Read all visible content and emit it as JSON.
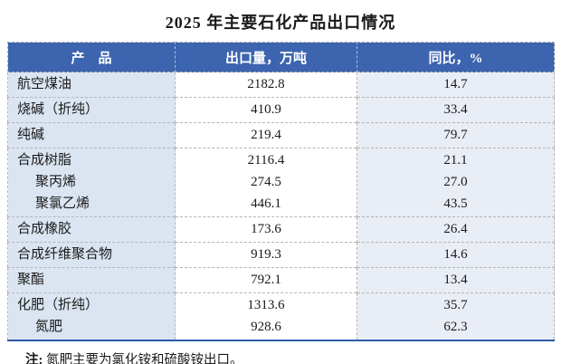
{
  "title": "2025 年主要石化产品出口情况",
  "colors": {
    "header_bg": "#3C64AF",
    "col1_bg": "#DBE5F1",
    "col3_bg": "#E9EDF5",
    "accent_border": "#2E5AA8",
    "grid": "#B5B5B5"
  },
  "table": {
    "headers": [
      "产　品",
      "出口量，万吨",
      "同比，%"
    ],
    "rows": [
      {
        "lines": [
          {
            "name": "航空煤油",
            "indent": false,
            "export": "2182.8",
            "yoy": "14.7"
          }
        ]
      },
      {
        "lines": [
          {
            "name": "烧碱（折纯）",
            "indent": false,
            "export": "410.9",
            "yoy": "33.4"
          }
        ]
      },
      {
        "lines": [
          {
            "name": "纯碱",
            "indent": false,
            "export": "219.4",
            "yoy": "79.7"
          }
        ]
      },
      {
        "lines": [
          {
            "name": "合成树脂",
            "indent": false,
            "export": "2116.4",
            "yoy": "21.1"
          },
          {
            "name": "聚丙烯",
            "indent": true,
            "export": "274.5",
            "yoy": "27.0"
          },
          {
            "name": "聚氯乙烯",
            "indent": true,
            "export": "446.1",
            "yoy": "43.5"
          }
        ]
      },
      {
        "lines": [
          {
            "name": "合成橡胶",
            "indent": false,
            "export": "173.6",
            "yoy": "26.4"
          }
        ]
      },
      {
        "lines": [
          {
            "name": "合成纤维聚合物",
            "indent": false,
            "export": "919.3",
            "yoy": "14.6"
          }
        ]
      },
      {
        "lines": [
          {
            "name": "聚酯",
            "indent": false,
            "export": "792.1",
            "yoy": "13.4"
          }
        ]
      },
      {
        "lines": [
          {
            "name": "化肥（折纯）",
            "indent": false,
            "export": "1313.6",
            "yoy": "35.7"
          },
          {
            "name": "氮肥",
            "indent": true,
            "export": "928.6",
            "yoy": "62.3"
          }
        ]
      }
    ]
  },
  "note": {
    "label": "注:",
    "text": "氮肥主要为氯化铵和硫酸铵出口。"
  }
}
